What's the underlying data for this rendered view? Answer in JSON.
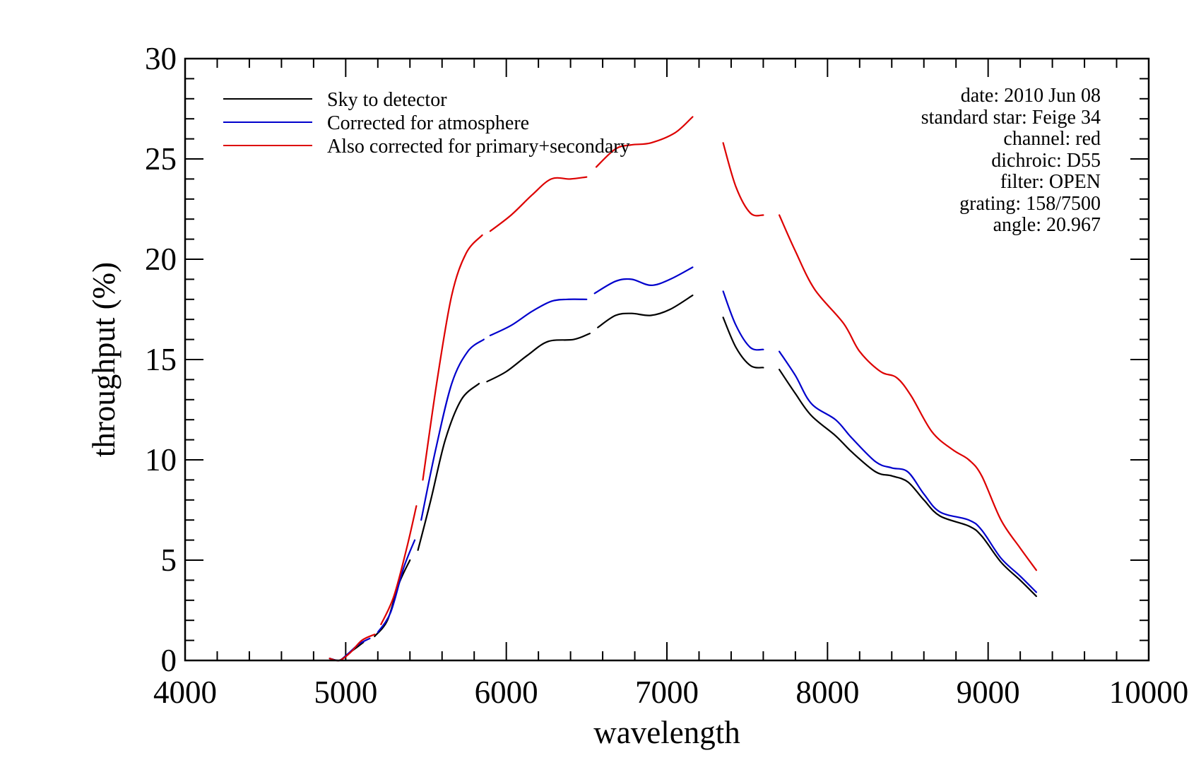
{
  "chart_data": {
    "type": "line",
    "title": "",
    "xlabel": "wavelength",
    "ylabel": "throughput (%)",
    "xlim": [
      4000,
      10000
    ],
    "ylim": [
      0,
      30
    ],
    "xticks": [
      4000,
      5000,
      6000,
      7000,
      8000,
      9000,
      10000
    ],
    "yticks": [
      0,
      5,
      10,
      15,
      20,
      25,
      30
    ],
    "xtick_labels": [
      "4000",
      "5000",
      "6000",
      "7000",
      "8000",
      "9000",
      "10000"
    ],
    "ytick_labels": [
      "0",
      "5",
      "10",
      "15",
      "20",
      "25",
      "30"
    ],
    "grid": false,
    "legend_position": "top-left",
    "series": [
      {
        "name": "Sky to detector",
        "color": "#000000",
        "segments": [
          [
            [
              4900,
              0.1
            ],
            [
              4960,
              0.0
            ],
            [
              5010,
              0.3
            ],
            [
              5060,
              0.6
            ],
            [
              5110,
              0.9
            ]
          ],
          [
            [
              5180,
              1.2
            ],
            [
              5260,
              2.0
            ],
            [
              5330,
              3.8
            ],
            [
              5400,
              5.0
            ]
          ],
          [
            [
              5450,
              5.5
            ],
            [
              5530,
              8.0
            ],
            [
              5620,
              11.0
            ],
            [
              5720,
              13.0
            ],
            [
              5830,
              13.8
            ]
          ],
          [
            [
              5880,
              13.9
            ],
            [
              6000,
              14.4
            ],
            [
              6130,
              15.2
            ],
            [
              6260,
              15.9
            ],
            [
              6420,
              16.0
            ],
            [
              6520,
              16.3
            ]
          ],
          [
            [
              6570,
              16.6
            ],
            [
              6680,
              17.2
            ],
            [
              6780,
              17.3
            ],
            [
              6900,
              17.2
            ],
            [
              7020,
              17.5
            ],
            [
              7160,
              18.2
            ]
          ],
          [
            [
              7350,
              17.1
            ],
            [
              7430,
              15.6
            ],
            [
              7520,
              14.7
            ],
            [
              7600,
              14.6
            ]
          ],
          [
            [
              7700,
              14.5
            ],
            [
              7800,
              13.3
            ],
            [
              7900,
              12.2
            ],
            [
              8050,
              11.2
            ],
            [
              8150,
              10.4
            ],
            [
              8300,
              9.4
            ],
            [
              8400,
              9.2
            ],
            [
              8500,
              8.9
            ],
            [
              8600,
              8.0
            ],
            [
              8700,
              7.2
            ],
            [
              8880,
              6.7
            ],
            [
              8960,
              6.2
            ],
            [
              9080,
              4.9
            ],
            [
              9200,
              4.0
            ],
            [
              9300,
              3.2
            ]
          ]
        ]
      },
      {
        "name": "Corrected for atmosphere",
        "color": "#0000cc",
        "segments": [
          [
            [
              4900,
              0.1
            ],
            [
              4960,
              0.0
            ],
            [
              5010,
              0.3
            ],
            [
              5080,
              0.8
            ],
            [
              5150,
              1.1
            ]
          ],
          [
            [
              5200,
              1.4
            ],
            [
              5280,
              2.4
            ],
            [
              5360,
              4.6
            ],
            [
              5430,
              6.0
            ]
          ],
          [
            [
              5470,
              7.0
            ],
            [
              5560,
              10.5
            ],
            [
              5660,
              13.8
            ],
            [
              5760,
              15.4
            ],
            [
              5860,
              16.0
            ]
          ],
          [
            [
              5900,
              16.2
            ],
            [
              6030,
              16.7
            ],
            [
              6160,
              17.4
            ],
            [
              6280,
              17.9
            ],
            [
              6380,
              18.0
            ],
            [
              6500,
              18.0
            ]
          ],
          [
            [
              6550,
              18.3
            ],
            [
              6680,
              18.9
            ],
            [
              6780,
              19.0
            ],
            [
              6900,
              18.7
            ],
            [
              7020,
              19.0
            ],
            [
              7160,
              19.6
            ]
          ],
          [
            [
              7350,
              18.4
            ],
            [
              7430,
              16.7
            ],
            [
              7520,
              15.6
            ],
            [
              7600,
              15.5
            ]
          ],
          [
            [
              7700,
              15.4
            ],
            [
              7800,
              14.2
            ],
            [
              7900,
              12.8
            ],
            [
              8050,
              12.0
            ],
            [
              8150,
              11.1
            ],
            [
              8300,
              9.9
            ],
            [
              8400,
              9.6
            ],
            [
              8500,
              9.4
            ],
            [
              8600,
              8.3
            ],
            [
              8700,
              7.4
            ],
            [
              8880,
              7.0
            ],
            [
              8960,
              6.5
            ],
            [
              9080,
              5.1
            ],
            [
              9200,
              4.2
            ],
            [
              9300,
              3.4
            ]
          ]
        ]
      },
      {
        "name": "Also corrected for primary+secondary",
        "color": "#dd0000",
        "segments": [
          [
            [
              4900,
              0.1
            ],
            [
              4960,
              0.0
            ],
            [
              5030,
              0.4
            ],
            [
              5100,
              1.0
            ],
            [
              5180,
              1.3
            ]
          ],
          [
            [
              5220,
              1.8
            ],
            [
              5300,
              3.2
            ],
            [
              5380,
              5.6
            ],
            [
              5440,
              7.7
            ]
          ],
          [
            [
              5480,
              9.0
            ],
            [
              5570,
              14.0
            ],
            [
              5660,
              18.2
            ],
            [
              5750,
              20.3
            ],
            [
              5850,
              21.2
            ]
          ],
          [
            [
              5900,
              21.4
            ],
            [
              6030,
              22.2
            ],
            [
              6160,
              23.2
            ],
            [
              6280,
              24.0
            ],
            [
              6400,
              24.0
            ],
            [
              6500,
              24.1
            ]
          ],
          [
            [
              6560,
              24.6
            ],
            [
              6680,
              25.5
            ],
            [
              6780,
              25.7
            ],
            [
              6900,
              25.8
            ],
            [
              7050,
              26.3
            ],
            [
              7160,
              27.1
            ]
          ],
          [
            [
              7350,
              25.8
            ],
            [
              7430,
              23.6
            ],
            [
              7520,
              22.3
            ],
            [
              7600,
              22.2
            ]
          ],
          [
            [
              7700,
              22.2
            ],
            [
              7800,
              20.4
            ],
            [
              7920,
              18.5
            ],
            [
              8100,
              16.8
            ],
            [
              8200,
              15.4
            ],
            [
              8330,
              14.4
            ],
            [
              8430,
              14.1
            ],
            [
              8520,
              13.2
            ],
            [
              8650,
              11.4
            ],
            [
              8780,
              10.5
            ],
            [
              8880,
              10.0
            ],
            [
              8960,
              9.2
            ],
            [
              9080,
              7.0
            ],
            [
              9200,
              5.6
            ],
            [
              9300,
              4.5
            ]
          ]
        ]
      }
    ],
    "annotations": [
      "date: 2010 Jun 08",
      "standard star: Feige 34",
      "channel: red",
      "dichroic: D55",
      "filter: OPEN",
      "grating: 158/7500",
      "angle: 20.967"
    ]
  }
}
